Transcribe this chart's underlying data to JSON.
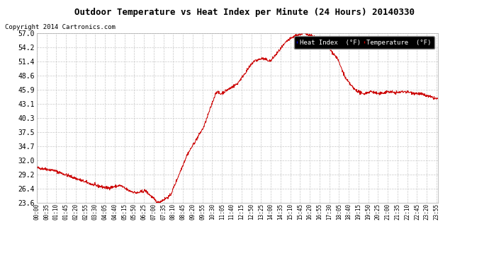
{
  "title": "Outdoor Temperature vs Heat Index per Minute (24 Hours) 20140330",
  "copyright": "Copyright 2014 Cartronics.com",
  "line_color": "#cc0000",
  "background_color": "#ffffff",
  "grid_color": "#c8c8c8",
  "yticks": [
    23.6,
    26.4,
    29.2,
    32.0,
    34.7,
    37.5,
    40.3,
    43.1,
    45.9,
    48.6,
    51.4,
    54.2,
    57.0
  ],
  "ylim": [
    23.6,
    57.0
  ],
  "legend_heat_index_bg": "#0000cc",
  "legend_temp_bg": "#cc0000",
  "legend_heat_index_label": "Heat Index  (°F)",
  "legend_temp_label": "Temperature  (°F)"
}
